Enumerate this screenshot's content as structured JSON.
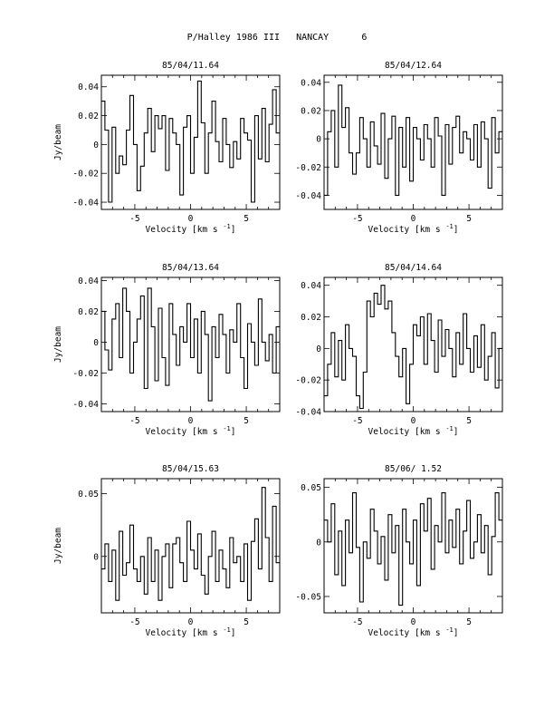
{
  "page_title": "P/Halley 1986 III   NANCAY      6",
  "chart_data": [
    {
      "type": "line",
      "title": "85/04/11.64",
      "xlabel": "Velocity [km s",
      "xlabel_sup": "-1",
      "xlabel_end": "]",
      "ylabel": "Jy/beam",
      "xlim": [
        -8,
        8
      ],
      "ylim": [
        -0.045,
        0.048
      ],
      "xticks": [
        -5,
        0,
        5
      ],
      "yticks": [
        -0.04,
        -0.02,
        0,
        0.02,
        0.04
      ],
      "ytick_labels": [
        "-0.04",
        "-0.02",
        "0",
        "0.02",
        "0.04"
      ],
      "series": [
        {
          "x": [
            -8.0,
            -7.68,
            -7.36,
            -7.04,
            -6.72,
            -6.4,
            -6.08,
            -5.76,
            -5.44,
            -5.12,
            -4.8,
            -4.48,
            -4.16,
            -3.84,
            -3.52,
            -3.2,
            -2.88,
            -2.56,
            -2.24,
            -1.92,
            -1.6,
            -1.28,
            -0.96,
            -0.64,
            -0.32,
            0.0,
            0.32,
            0.64,
            0.96,
            1.28,
            1.6,
            1.92,
            2.24,
            2.56,
            2.88,
            3.2,
            3.52,
            3.84,
            4.16,
            4.48,
            4.8,
            5.12,
            5.44,
            5.76,
            6.08,
            6.4,
            6.72,
            7.04,
            7.36,
            7.68
          ],
          "y": [
            0.03,
            0.01,
            -0.04,
            0.012,
            -0.02,
            -0.008,
            -0.014,
            0.01,
            0.034,
            0.0,
            -0.032,
            -0.015,
            0.008,
            0.025,
            -0.005,
            0.02,
            0.011,
            0.02,
            -0.018,
            0.018,
            0.008,
            0.0,
            -0.035,
            0.012,
            0.02,
            -0.02,
            0.005,
            0.044,
            0.015,
            -0.02,
            0.008,
            0.03,
            0.002,
            -0.012,
            0.018,
            0.0,
            -0.016,
            0.002,
            -0.01,
            0.018,
            0.008,
            0.003,
            -0.04,
            0.02,
            -0.01,
            0.025,
            -0.012,
            0.014,
            0.038,
            0.008
          ]
        }
      ]
    },
    {
      "type": "line",
      "title": "85/04/12.64",
      "xlabel": "Velocity [km s",
      "xlabel_sup": "-1",
      "xlabel_end": "]",
      "ylabel": "",
      "xlim": [
        -8,
        8
      ],
      "ylim": [
        -0.05,
        0.045
      ],
      "xticks": [
        -5,
        0,
        5
      ],
      "yticks": [
        -0.04,
        -0.02,
        0,
        0.02,
        0.04
      ],
      "ytick_labels": [
        "-0.04",
        "-0.02",
        "0",
        "0.02",
        "0.04"
      ],
      "series": [
        {
          "x": [
            -8.0,
            -7.68,
            -7.36,
            -7.04,
            -6.72,
            -6.4,
            -6.08,
            -5.76,
            -5.44,
            -5.12,
            -4.8,
            -4.48,
            -4.16,
            -3.84,
            -3.52,
            -3.2,
            -2.88,
            -2.56,
            -2.24,
            -1.92,
            -1.6,
            -1.28,
            -0.96,
            -0.64,
            -0.32,
            0.0,
            0.32,
            0.64,
            0.96,
            1.28,
            1.6,
            1.92,
            2.24,
            2.56,
            2.88,
            3.2,
            3.52,
            3.84,
            4.16,
            4.48,
            4.8,
            5.12,
            5.44,
            5.76,
            6.08,
            6.4,
            6.72,
            7.04,
            7.36,
            7.68
          ],
          "y": [
            -0.04,
            0.005,
            0.02,
            -0.02,
            0.038,
            0.008,
            0.022,
            -0.01,
            -0.025,
            -0.01,
            0.015,
            0.0,
            -0.02,
            0.012,
            -0.005,
            -0.018,
            0.018,
            -0.028,
            0.0,
            0.016,
            -0.04,
            0.008,
            -0.02,
            0.015,
            -0.03,
            0.008,
            0.0,
            -0.015,
            0.01,
            0.0,
            -0.02,
            0.015,
            0.002,
            -0.04,
            0.01,
            -0.018,
            0.008,
            0.016,
            -0.01,
            0.005,
            0.0,
            -0.015,
            0.01,
            -0.02,
            0.012,
            0.0,
            -0.035,
            0.015,
            -0.01,
            0.005
          ]
        }
      ]
    },
    {
      "type": "line",
      "title": "85/04/13.64",
      "xlabel": "Velocity [km s",
      "xlabel_sup": "-1",
      "xlabel_end": "]",
      "ylabel": "Jy/beam",
      "xlim": [
        -8,
        8
      ],
      "ylim": [
        -0.045,
        0.042
      ],
      "xticks": [
        -5,
        0,
        5
      ],
      "yticks": [
        -0.04,
        -0.02,
        0,
        0.02,
        0.04
      ],
      "ytick_labels": [
        "-0.04",
        "-0.02",
        "0",
        "0.02",
        "0.04"
      ],
      "series": [
        {
          "x": [
            -8.0,
            -7.68,
            -7.36,
            -7.04,
            -6.72,
            -6.4,
            -6.08,
            -5.76,
            -5.44,
            -5.12,
            -4.8,
            -4.48,
            -4.16,
            -3.84,
            -3.52,
            -3.2,
            -2.88,
            -2.56,
            -2.24,
            -1.92,
            -1.6,
            -1.28,
            -0.96,
            -0.64,
            -0.32,
            0.0,
            0.32,
            0.64,
            0.96,
            1.28,
            1.6,
            1.92,
            2.24,
            2.56,
            2.88,
            3.2,
            3.52,
            3.84,
            4.16,
            4.48,
            4.8,
            5.12,
            5.44,
            5.76,
            6.08,
            6.4,
            6.72,
            7.04,
            7.36,
            7.68
          ],
          "y": [
            0.02,
            -0.005,
            -0.018,
            0.015,
            0.025,
            -0.01,
            0.035,
            0.02,
            -0.02,
            0.0,
            0.015,
            0.03,
            -0.03,
            0.035,
            0.01,
            -0.025,
            0.022,
            -0.01,
            -0.028,
            0.025,
            0.005,
            -0.015,
            0.01,
            0.0,
            0.025,
            -0.01,
            0.015,
            -0.02,
            0.02,
            0.005,
            -0.038,
            0.01,
            -0.01,
            0.018,
            0.005,
            -0.02,
            0.008,
            0.0,
            0.025,
            -0.01,
            -0.03,
            0.012,
            0.0,
            -0.015,
            0.028,
            0.0,
            -0.012,
            0.005,
            -0.02,
            0.01
          ]
        }
      ]
    },
    {
      "type": "line",
      "title": "85/04/14.64",
      "xlabel": "Velocity [km s",
      "xlabel_sup": "-1",
      "xlabel_end": "]",
      "ylabel": "",
      "xlim": [
        -8,
        8
      ],
      "ylim": [
        -0.04,
        0.045
      ],
      "xticks": [
        -5,
        0,
        5
      ],
      "yticks": [
        -0.04,
        -0.02,
        0,
        0.02,
        0.04
      ],
      "ytick_labels": [
        "-0.04",
        "-0.02",
        "0",
        "0.02",
        "0.04"
      ],
      "series": [
        {
          "x": [
            -8.0,
            -7.68,
            -7.36,
            -7.04,
            -6.72,
            -6.4,
            -6.08,
            -5.76,
            -5.44,
            -5.12,
            -4.8,
            -4.48,
            -4.16,
            -3.84,
            -3.52,
            -3.2,
            -2.88,
            -2.56,
            -2.24,
            -1.92,
            -1.6,
            -1.28,
            -0.96,
            -0.64,
            -0.32,
            0.0,
            0.32,
            0.64,
            0.96,
            1.28,
            1.6,
            1.92,
            2.24,
            2.56,
            2.88,
            3.2,
            3.52,
            3.84,
            4.16,
            4.48,
            4.8,
            5.12,
            5.44,
            5.76,
            6.08,
            6.4,
            6.72,
            7.04,
            7.36,
            7.68
          ],
          "y": [
            -0.03,
            -0.01,
            0.01,
            -0.018,
            0.005,
            -0.02,
            0.015,
            0.0,
            -0.005,
            -0.03,
            -0.038,
            -0.015,
            0.03,
            0.02,
            0.035,
            0.028,
            0.04,
            0.025,
            0.03,
            0.01,
            -0.005,
            -0.018,
            0.0,
            -0.035,
            -0.01,
            0.015,
            0.008,
            0.02,
            -0.01,
            0.022,
            0.005,
            -0.015,
            0.018,
            -0.005,
            0.012,
            0.0,
            -0.018,
            0.01,
            -0.01,
            0.022,
            0.0,
            -0.015,
            0.008,
            -0.012,
            0.015,
            -0.02,
            -0.005,
            0.01,
            -0.025,
            0.0
          ]
        }
      ]
    },
    {
      "type": "line",
      "title": "85/04/15.63",
      "xlabel": "Velocity [km s",
      "xlabel_sup": "-1",
      "xlabel_end": "]",
      "ylabel": "Jy/beam",
      "xlim": [
        -8,
        8
      ],
      "ylim": [
        -0.045,
        0.062
      ],
      "xticks": [
        -5,
        0,
        5
      ],
      "yticks": [
        0,
        0.05
      ],
      "ytick_labels": [
        "0",
        "0.05"
      ],
      "series": [
        {
          "x": [
            -8.0,
            -7.68,
            -7.36,
            -7.04,
            -6.72,
            -6.4,
            -6.08,
            -5.76,
            -5.44,
            -5.12,
            -4.8,
            -4.48,
            -4.16,
            -3.84,
            -3.52,
            -3.2,
            -2.88,
            -2.56,
            -2.24,
            -1.92,
            -1.6,
            -1.28,
            -0.96,
            -0.64,
            -0.32,
            0.0,
            0.32,
            0.64,
            0.96,
            1.28,
            1.6,
            1.92,
            2.24,
            2.56,
            2.88,
            3.2,
            3.52,
            3.84,
            4.16,
            4.48,
            4.8,
            5.12,
            5.44,
            5.76,
            6.08,
            6.4,
            6.72,
            7.04,
            7.36,
            7.68
          ],
          "y": [
            -0.01,
            0.01,
            -0.02,
            0.005,
            -0.035,
            0.02,
            -0.015,
            -0.005,
            0.025,
            -0.01,
            -0.02,
            0.0,
            -0.03,
            0.015,
            -0.02,
            0.005,
            -0.035,
            0.0,
            0.01,
            -0.025,
            0.01,
            0.015,
            -0.005,
            -0.02,
            0.028,
            0.005,
            -0.01,
            0.018,
            -0.015,
            -0.03,
            0.0,
            0.02,
            -0.02,
            0.005,
            -0.01,
            -0.025,
            0.015,
            -0.005,
            0.0,
            -0.02,
            0.01,
            -0.035,
            0.012,
            0.03,
            -0.01,
            0.055,
            0.015,
            -0.02,
            0.04,
            -0.005
          ]
        }
      ]
    },
    {
      "type": "line",
      "title": "85/06/ 1.52",
      "xlabel": "Velocity [km s",
      "xlabel_sup": "-1",
      "xlabel_end": "]",
      "ylabel": "",
      "xlim": [
        -8,
        8
      ],
      "ylim": [
        -0.065,
        0.058
      ],
      "xticks": [
        -5,
        0,
        5
      ],
      "yticks": [
        -0.05,
        0,
        0.05
      ],
      "ytick_labels": [
        "-0.05",
        "0",
        "0.05"
      ],
      "series": [
        {
          "x": [
            -8.0,
            -7.68,
            -7.36,
            -7.04,
            -6.72,
            -6.4,
            -6.08,
            -5.76,
            -5.44,
            -5.12,
            -4.8,
            -4.48,
            -4.16,
            -3.84,
            -3.52,
            -3.2,
            -2.88,
            -2.56,
            -2.24,
            -1.92,
            -1.6,
            -1.28,
            -0.96,
            -0.64,
            -0.32,
            0.0,
            0.32,
            0.64,
            0.96,
            1.28,
            1.6,
            1.92,
            2.24,
            2.56,
            2.88,
            3.2,
            3.52,
            3.84,
            4.16,
            4.48,
            4.8,
            5.12,
            5.44,
            5.76,
            6.08,
            6.4,
            6.72,
            7.04,
            7.36,
            7.68
          ],
          "y": [
            0.02,
            0.0,
            0.035,
            -0.03,
            0.01,
            -0.04,
            0.02,
            -0.01,
            0.045,
            -0.005,
            -0.055,
            0.0,
            -0.015,
            0.03,
            0.01,
            -0.02,
            0.005,
            -0.035,
            0.025,
            -0.01,
            0.015,
            -0.058,
            0.03,
            0.0,
            -0.02,
            0.02,
            -0.04,
            0.035,
            0.01,
            0.04,
            -0.025,
            0.015,
            0.0,
            0.045,
            -0.01,
            0.02,
            -0.005,
            0.03,
            -0.02,
            0.01,
            0.038,
            -0.015,
            0.0,
            0.025,
            -0.01,
            0.015,
            -0.03,
            0.005,
            0.045,
            0.02
          ]
        }
      ]
    }
  ]
}
